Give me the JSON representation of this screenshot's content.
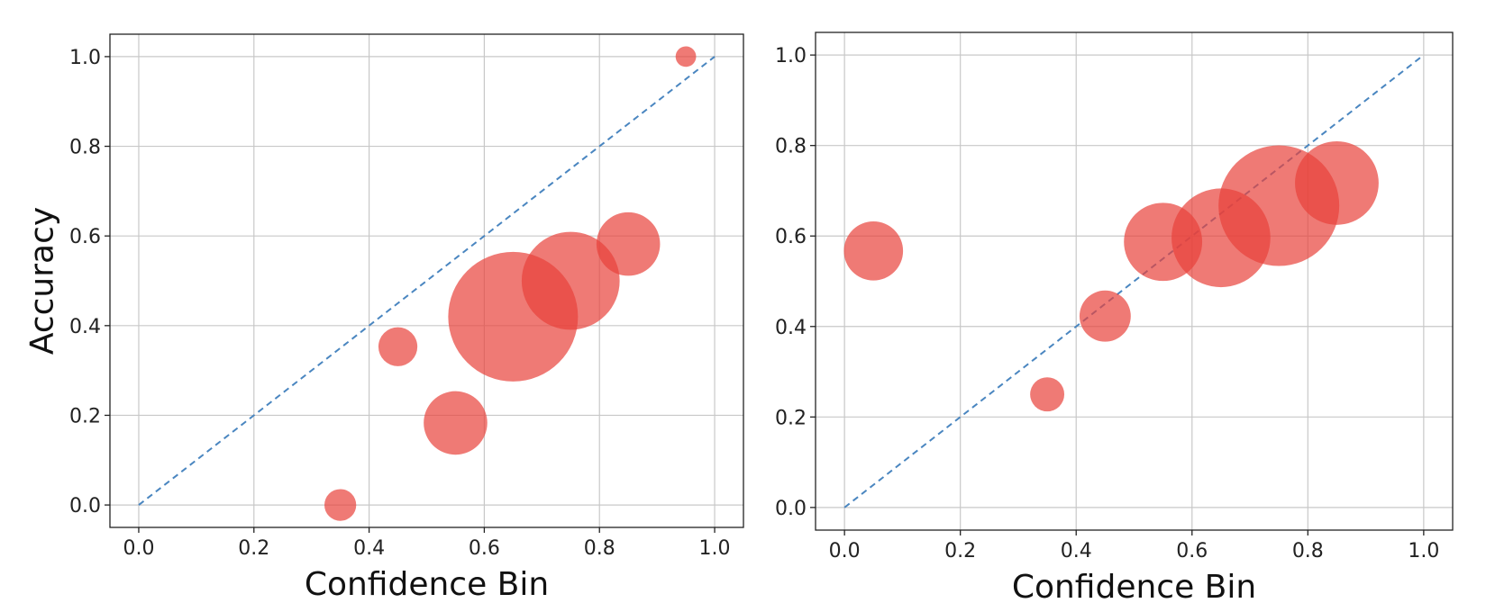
{
  "chart_data": [
    {
      "type": "scatter",
      "xlabel": "Confidence Bin",
      "ylabel": "Accuracy",
      "xlim": [
        -0.05,
        1.05
      ],
      "ylim": [
        -0.05,
        1.05
      ],
      "xticks": [
        "0.0",
        "0.2",
        "0.4",
        "0.6",
        "0.8",
        "1.0"
      ],
      "yticks": [
        "0.0",
        "0.2",
        "0.4",
        "0.6",
        "0.8",
        "1.0"
      ],
      "grid": true,
      "reference_line": {
        "x": [
          0,
          1
        ],
        "y": [
          0,
          1
        ],
        "style": "dashed",
        "color": "#4a86c0"
      },
      "marker_color": "#e8423a",
      "points": [
        {
          "x": 0.35,
          "y": 0.0,
          "size": 0.06
        },
        {
          "x": 0.45,
          "y": 0.353,
          "size": 0.09
        },
        {
          "x": 0.55,
          "y": 0.183,
          "size": 0.24
        },
        {
          "x": 0.65,
          "y": 0.42,
          "size": 1.0
        },
        {
          "x": 0.75,
          "y": 0.5,
          "size": 0.57
        },
        {
          "x": 0.85,
          "y": 0.582,
          "size": 0.24
        },
        {
          "x": 0.95,
          "y": 1.0,
          "size": 0.025
        }
      ]
    },
    {
      "type": "scatter",
      "xlabel": "Confidence Bin",
      "ylabel": "",
      "xlim": [
        -0.05,
        1.05
      ],
      "ylim": [
        -0.05,
        1.05
      ],
      "xticks": [
        "0.0",
        "0.2",
        "0.4",
        "0.6",
        "0.8",
        "1.0"
      ],
      "yticks": [
        "0.0",
        "0.2",
        "0.4",
        "0.6",
        "0.8",
        "1.0"
      ],
      "grid": true,
      "reference_line": {
        "x": [
          0,
          1
        ],
        "y": [
          0,
          1
        ],
        "style": "dashed",
        "color": "#4a86c0"
      },
      "marker_color": "#e8423a",
      "points": [
        {
          "x": 0.05,
          "y": 0.567,
          "size": 0.24
        },
        {
          "x": 0.35,
          "y": 0.25,
          "size": 0.08
        },
        {
          "x": 0.45,
          "y": 0.423,
          "size": 0.18
        },
        {
          "x": 0.55,
          "y": 0.587,
          "size": 0.42
        },
        {
          "x": 0.65,
          "y": 0.596,
          "size": 0.67
        },
        {
          "x": 0.75,
          "y": 0.667,
          "size": 1.0
        },
        {
          "x": 0.85,
          "y": 0.717,
          "size": 0.48
        }
      ]
    }
  ]
}
